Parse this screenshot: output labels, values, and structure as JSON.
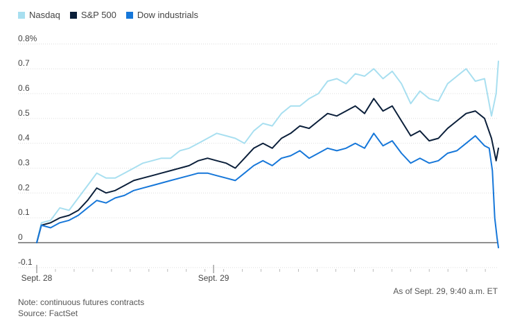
{
  "legend": [
    {
      "label": "Nasdaq",
      "color": "#a8dff0"
    },
    {
      "label": "S&P 500",
      "color": "#0b1f3a"
    },
    {
      "label": "Dow industrials",
      "color": "#1677d9"
    }
  ],
  "footer": {
    "as_of": "As of Sept. 29, 9:40 a.m. ET",
    "note": "Note: continuous futures contracts",
    "source": "Source: FactSet"
  },
  "chart_data": {
    "type": "line",
    "title": "",
    "xlabel": "",
    "ylabel": "",
    "ylim": [
      -0.1,
      0.8
    ],
    "yticks": [
      0.8,
      0.7,
      0.6,
      0.5,
      0.4,
      0.3,
      0.2,
      0.1,
      0,
      -0.1
    ],
    "ytick_labels": [
      "0.8%",
      "0.7",
      "0.6",
      "0.5",
      "0.4",
      "0.3",
      "0.2",
      "0.1",
      "0",
      "-0.1"
    ],
    "xlim": [
      0,
      100
    ],
    "xtick_labels": [
      {
        "x": 0,
        "label": "Sept. 28"
      },
      {
        "x": 38.3,
        "label": "Sept. 29"
      }
    ],
    "grid": true,
    "legend_position": "top-left",
    "series": [
      {
        "name": "Nasdaq",
        "color": "#a8dff0",
        "x": [
          0,
          1,
          3,
          5,
          7,
          9,
          11,
          13,
          15,
          17,
          19,
          21,
          23,
          25,
          27,
          29,
          31,
          33,
          35,
          37,
          39,
          41,
          43,
          45,
          47,
          49,
          51,
          53,
          55,
          57,
          59,
          61,
          63,
          65,
          67,
          69,
          71,
          73,
          75,
          77,
          79,
          81,
          83,
          85,
          87,
          89,
          91,
          93,
          95,
          97,
          98.5,
          99.5,
          100
        ],
        "values": [
          0,
          0.08,
          0.09,
          0.14,
          0.13,
          0.18,
          0.23,
          0.28,
          0.26,
          0.26,
          0.28,
          0.3,
          0.32,
          0.33,
          0.34,
          0.34,
          0.37,
          0.38,
          0.4,
          0.42,
          0.44,
          0.43,
          0.42,
          0.4,
          0.45,
          0.48,
          0.47,
          0.52,
          0.55,
          0.55,
          0.58,
          0.6,
          0.65,
          0.66,
          0.64,
          0.68,
          0.67,
          0.7,
          0.66,
          0.69,
          0.64,
          0.56,
          0.61,
          0.58,
          0.57,
          0.64,
          0.67,
          0.7,
          0.65,
          0.66,
          0.51,
          0.6,
          0.73
        ]
      },
      {
        "name": "S&P 500",
        "color": "#0b1f3a",
        "x": [
          0,
          1,
          3,
          5,
          7,
          9,
          11,
          13,
          15,
          17,
          19,
          21,
          23,
          25,
          27,
          29,
          31,
          33,
          35,
          37,
          39,
          41,
          43,
          45,
          47,
          49,
          51,
          53,
          55,
          57,
          59,
          61,
          63,
          65,
          67,
          69,
          71,
          73,
          75,
          77,
          79,
          81,
          83,
          85,
          87,
          89,
          91,
          93,
          95,
          97,
          98.5,
          99.5,
          100
        ],
        "values": [
          0,
          0.07,
          0.08,
          0.1,
          0.11,
          0.13,
          0.17,
          0.22,
          0.2,
          0.21,
          0.23,
          0.25,
          0.26,
          0.27,
          0.28,
          0.29,
          0.3,
          0.31,
          0.33,
          0.34,
          0.33,
          0.32,
          0.3,
          0.34,
          0.38,
          0.4,
          0.38,
          0.42,
          0.44,
          0.47,
          0.46,
          0.49,
          0.52,
          0.51,
          0.53,
          0.55,
          0.52,
          0.58,
          0.53,
          0.55,
          0.49,
          0.43,
          0.45,
          0.41,
          0.42,
          0.46,
          0.49,
          0.52,
          0.53,
          0.5,
          0.42,
          0.33,
          0.38
        ]
      },
      {
        "name": "Dow industrials",
        "color": "#1677d9",
        "x": [
          0,
          1,
          3,
          5,
          7,
          9,
          11,
          13,
          15,
          17,
          19,
          21,
          23,
          25,
          27,
          29,
          31,
          33,
          35,
          37,
          39,
          41,
          43,
          45,
          47,
          49,
          51,
          53,
          55,
          57,
          59,
          61,
          63,
          65,
          67,
          69,
          71,
          73,
          75,
          77,
          79,
          81,
          83,
          85,
          87,
          89,
          91,
          93,
          95,
          97,
          98,
          98.7,
          99.2,
          99.7,
          100
        ],
        "values": [
          0,
          0.07,
          0.06,
          0.08,
          0.09,
          0.11,
          0.14,
          0.17,
          0.16,
          0.18,
          0.19,
          0.21,
          0.22,
          0.23,
          0.24,
          0.25,
          0.26,
          0.27,
          0.28,
          0.28,
          0.27,
          0.26,
          0.25,
          0.28,
          0.31,
          0.33,
          0.31,
          0.34,
          0.35,
          0.37,
          0.34,
          0.36,
          0.38,
          0.37,
          0.38,
          0.4,
          0.38,
          0.44,
          0.39,
          0.41,
          0.36,
          0.32,
          0.34,
          0.32,
          0.33,
          0.36,
          0.37,
          0.4,
          0.43,
          0.39,
          0.38,
          0.29,
          0.1,
          0.02,
          -0.02
        ]
      }
    ]
  }
}
